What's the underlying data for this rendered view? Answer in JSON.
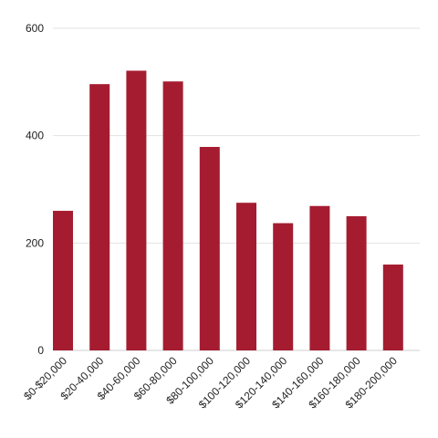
{
  "chart_data": {
    "type": "bar",
    "title": "",
    "xlabel": "",
    "ylabel": "",
    "categories": [
      "$0-$20,000",
      "$20-40,000",
      "$40-60,000",
      "$60-80,000",
      "$80-100,000",
      "$100-120,000",
      "$120-140,000",
      "$140-160,000",
      "$160-180,000",
      "$180-200,000"
    ],
    "values": [
      260,
      496,
      521,
      501,
      379,
      275,
      237,
      269,
      250,
      160
    ],
    "ylim": [
      0,
      600
    ],
    "yticks": [
      0,
      200,
      400,
      600
    ],
    "grid": true,
    "legend": "none",
    "bar_color": "#a51c30"
  }
}
